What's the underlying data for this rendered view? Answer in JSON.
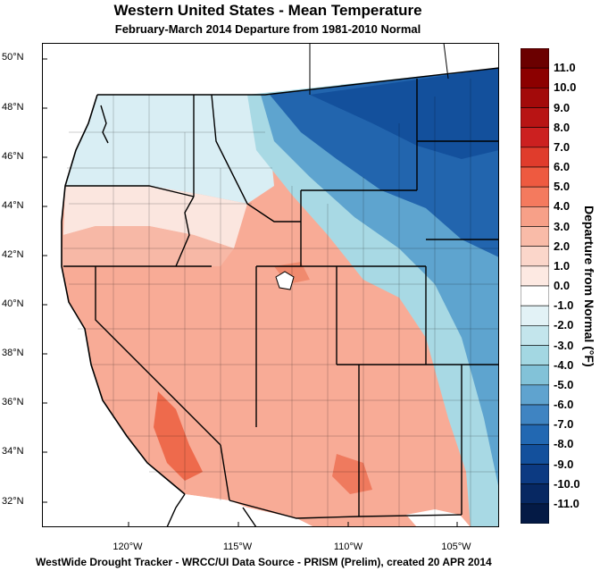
{
  "title": "Western United States - Mean Temperature",
  "subtitle": "February-March 2014  Departure from 1981-2010 Normal",
  "footer": "WestWide Drought Tracker - WRCC/UI  Data Source - PRISM (Prelim), created 20 APR 2014",
  "colorbar": {
    "title": "Departure from Normal (°F)",
    "labels": [
      "11.0",
      "10.0",
      "9.0",
      "8.0",
      "7.0",
      "6.0",
      "5.0",
      "4.0",
      "3.0",
      "2.0",
      "1.0",
      "0.0",
      "-1.0",
      "-2.0",
      "-3.0",
      "-4.0",
      "-5.0",
      "-6.0",
      "-7.0",
      "-8.0",
      "-9.0",
      "-10.0",
      "-11.0"
    ],
    "colors": [
      "#6b0000",
      "#8c0000",
      "#a30a0a",
      "#b81414",
      "#cc2020",
      "#e03c2c",
      "#ee5a40",
      "#f47a5e",
      "#f7a088",
      "#f9bba8",
      "#fbd6ca",
      "#fde9e2",
      "#ffffff",
      "#e2f2f6",
      "#c3e5ec",
      "#a3d7e2",
      "#82c2d8",
      "#5fa3cf",
      "#3f84c2",
      "#2268b2",
      "#13509c",
      "#0c3a82",
      "#072862",
      "#041a45"
    ]
  },
  "latitude_labels": [
    "50°N",
    "48°N",
    "46°N",
    "44°N",
    "42°N",
    "40°N",
    "38°N",
    "36°N",
    "34°N",
    "32°N"
  ],
  "longitude_labels": [
    "120°W",
    "115°W",
    "110°W",
    "105°W"
  ]
}
